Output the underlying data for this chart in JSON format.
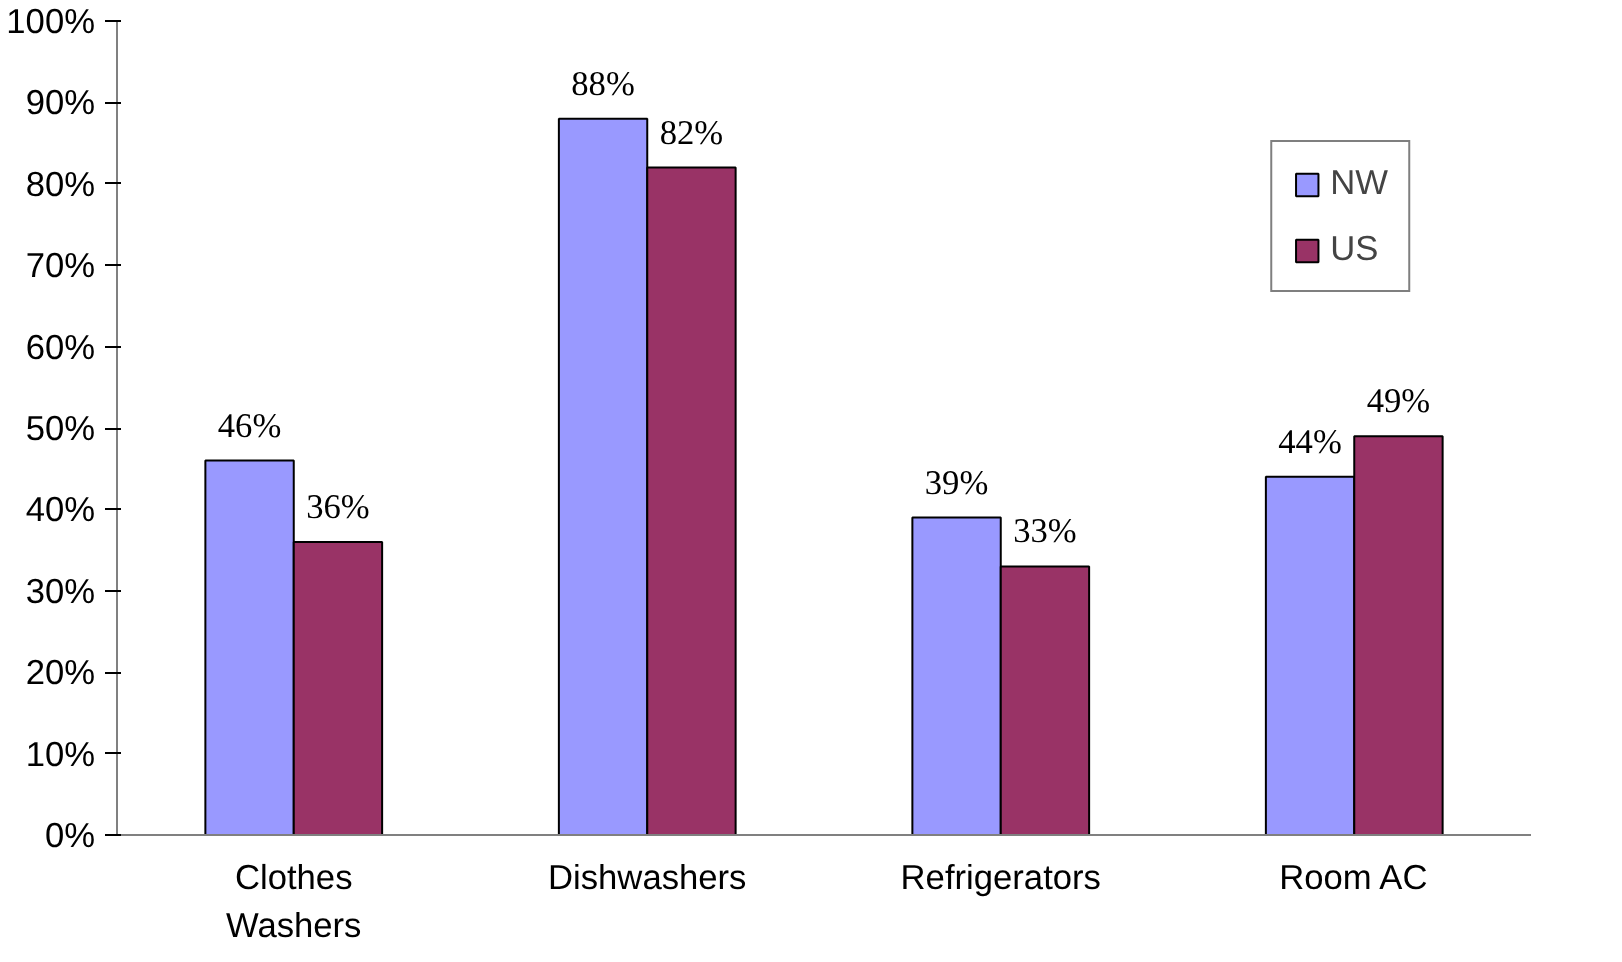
{
  "chart_data": {
    "type": "bar",
    "categories": [
      "Clothes Washers",
      "Dishwashers",
      "Refrigerators",
      "Room AC"
    ],
    "series": [
      {
        "name": "NW",
        "color": "#9999ff",
        "values": [
          46,
          88,
          39,
          44
        ],
        "value_labels": [
          "46%",
          "88%",
          "39%",
          "44%"
        ]
      },
      {
        "name": "US",
        "color": "#993366",
        "values": [
          36,
          82,
          33,
          49
        ],
        "value_labels": [
          "36%",
          "82%",
          "33%",
          "49%"
        ]
      }
    ],
    "ylim": [
      0,
      100
    ],
    "yticks": [
      {
        "value": 0,
        "label": "0%"
      },
      {
        "value": 10,
        "label": "10%"
      },
      {
        "value": 20,
        "label": "20%"
      },
      {
        "value": 30,
        "label": "30%"
      },
      {
        "value": 40,
        "label": "40%"
      },
      {
        "value": 50,
        "label": "50%"
      },
      {
        "value": 60,
        "label": "60%"
      },
      {
        "value": 70,
        "label": "70%"
      },
      {
        "value": 80,
        "label": "80%"
      },
      {
        "value": 90,
        "label": "90%"
      },
      {
        "value": 100,
        "label": "100%"
      }
    ],
    "legend": "top right",
    "grid": false
  }
}
